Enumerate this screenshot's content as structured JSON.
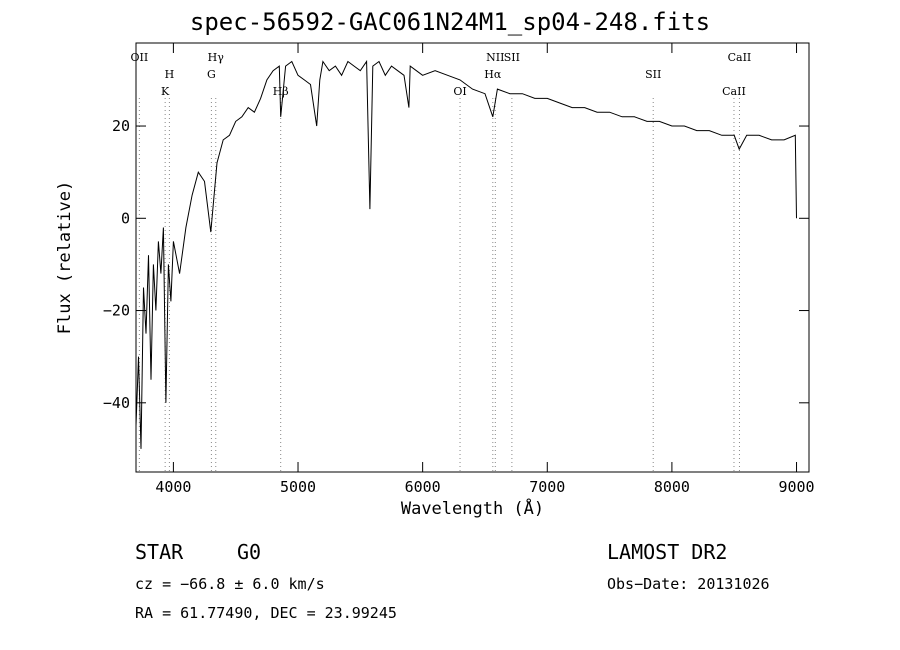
{
  "title": "spec-56592-GAC061N24M1_sp04-248.fits",
  "chart_data": {
    "type": "line",
    "title": "spec-56592-GAC061N24M1_sp04-248.fits",
    "xlabel": "Wavelength (Å)",
    "ylabel": "Flux (relative)",
    "xlim": [
      3700,
      9100
    ],
    "ylim": [
      -55,
      38
    ],
    "x_ticks": [
      4000,
      5000,
      6000,
      7000,
      8000,
      9000
    ],
    "y_ticks": [
      20,
      0,
      -20,
      -40
    ],
    "grid": false,
    "series": [
      {
        "x": [
          3700,
          3720,
          3740,
          3760,
          3780,
          3800,
          3820,
          3840,
          3860,
          3880,
          3900,
          3920,
          3940,
          3960,
          3980,
          4000,
          4050,
          4100,
          4150,
          4200,
          4250,
          4300,
          4350,
          4400,
          4450,
          4500,
          4550,
          4600,
          4650,
          4700,
          4750,
          4800,
          4850,
          4861,
          4900,
          4950,
          5000,
          5050,
          5100,
          5150,
          5175,
          5200,
          5250,
          5300,
          5350,
          5400,
          5450,
          5500,
          5550,
          5577,
          5600,
          5650,
          5700,
          5750,
          5800,
          5850,
          5890,
          5900,
          5950,
          6000,
          6100,
          6200,
          6300,
          6400,
          6500,
          6563,
          6600,
          6700,
          6800,
          6900,
          7000,
          7100,
          7200,
          7300,
          7400,
          7500,
          7600,
          7700,
          7800,
          7900,
          8000,
          8100,
          8200,
          8300,
          8400,
          8500,
          8540,
          8600,
          8700,
          8800,
          8900,
          8990,
          9000
        ],
        "y": [
          -45,
          -30,
          -50,
          -15,
          -25,
          -8,
          -35,
          -10,
          -20,
          -5,
          -12,
          -2,
          -40,
          -10,
          -18,
          -5,
          -12,
          -2,
          5,
          10,
          8,
          -3,
          12,
          17,
          18,
          21,
          22,
          24,
          23,
          26,
          30,
          32,
          33,
          22,
          33,
          34,
          31,
          30,
          29,
          20,
          30,
          34,
          32,
          33,
          31,
          34,
          33,
          32,
          34,
          2,
          33,
          34,
          31,
          33,
          32,
          31,
          24,
          33,
          32,
          31,
          32,
          31,
          30,
          28,
          27,
          22,
          28,
          27,
          27,
          26,
          26,
          25,
          24,
          24,
          23,
          23,
          22,
          22,
          21,
          21,
          20,
          20,
          19,
          19,
          18,
          18,
          15,
          18,
          18,
          17,
          17,
          18,
          0
        ]
      }
    ],
    "annotations": [
      {
        "label": "OII",
        "x": 3727
      },
      {
        "label": "H",
        "x": 3968
      },
      {
        "label": "K",
        "x": 3934
      },
      {
        "label": "Hγ",
        "x": 4340
      },
      {
        "label": "G",
        "x": 4305
      },
      {
        "label": "Hβ",
        "x": 4861
      },
      {
        "label": "NII",
        "x": 6583
      },
      {
        "label": "Hα",
        "x": 6563
      },
      {
        "label": "OI",
        "x": 6300
      },
      {
        "label": "SII",
        "x": 6716
      },
      {
        "label": "SII",
        "x": 7850
      },
      {
        "label": "CaII",
        "x": 8498
      },
      {
        "label": "CaII",
        "x": 8542
      }
    ]
  },
  "footer": {
    "class_label": "STAR",
    "subclass": "G0",
    "survey": "LAMOST DR2",
    "cz": "cz = −66.8 ± 6.0 km/s",
    "obs_date": "Obs−Date: 20131026",
    "radec": "RA =  61.77490, DEC =  23.99245"
  }
}
